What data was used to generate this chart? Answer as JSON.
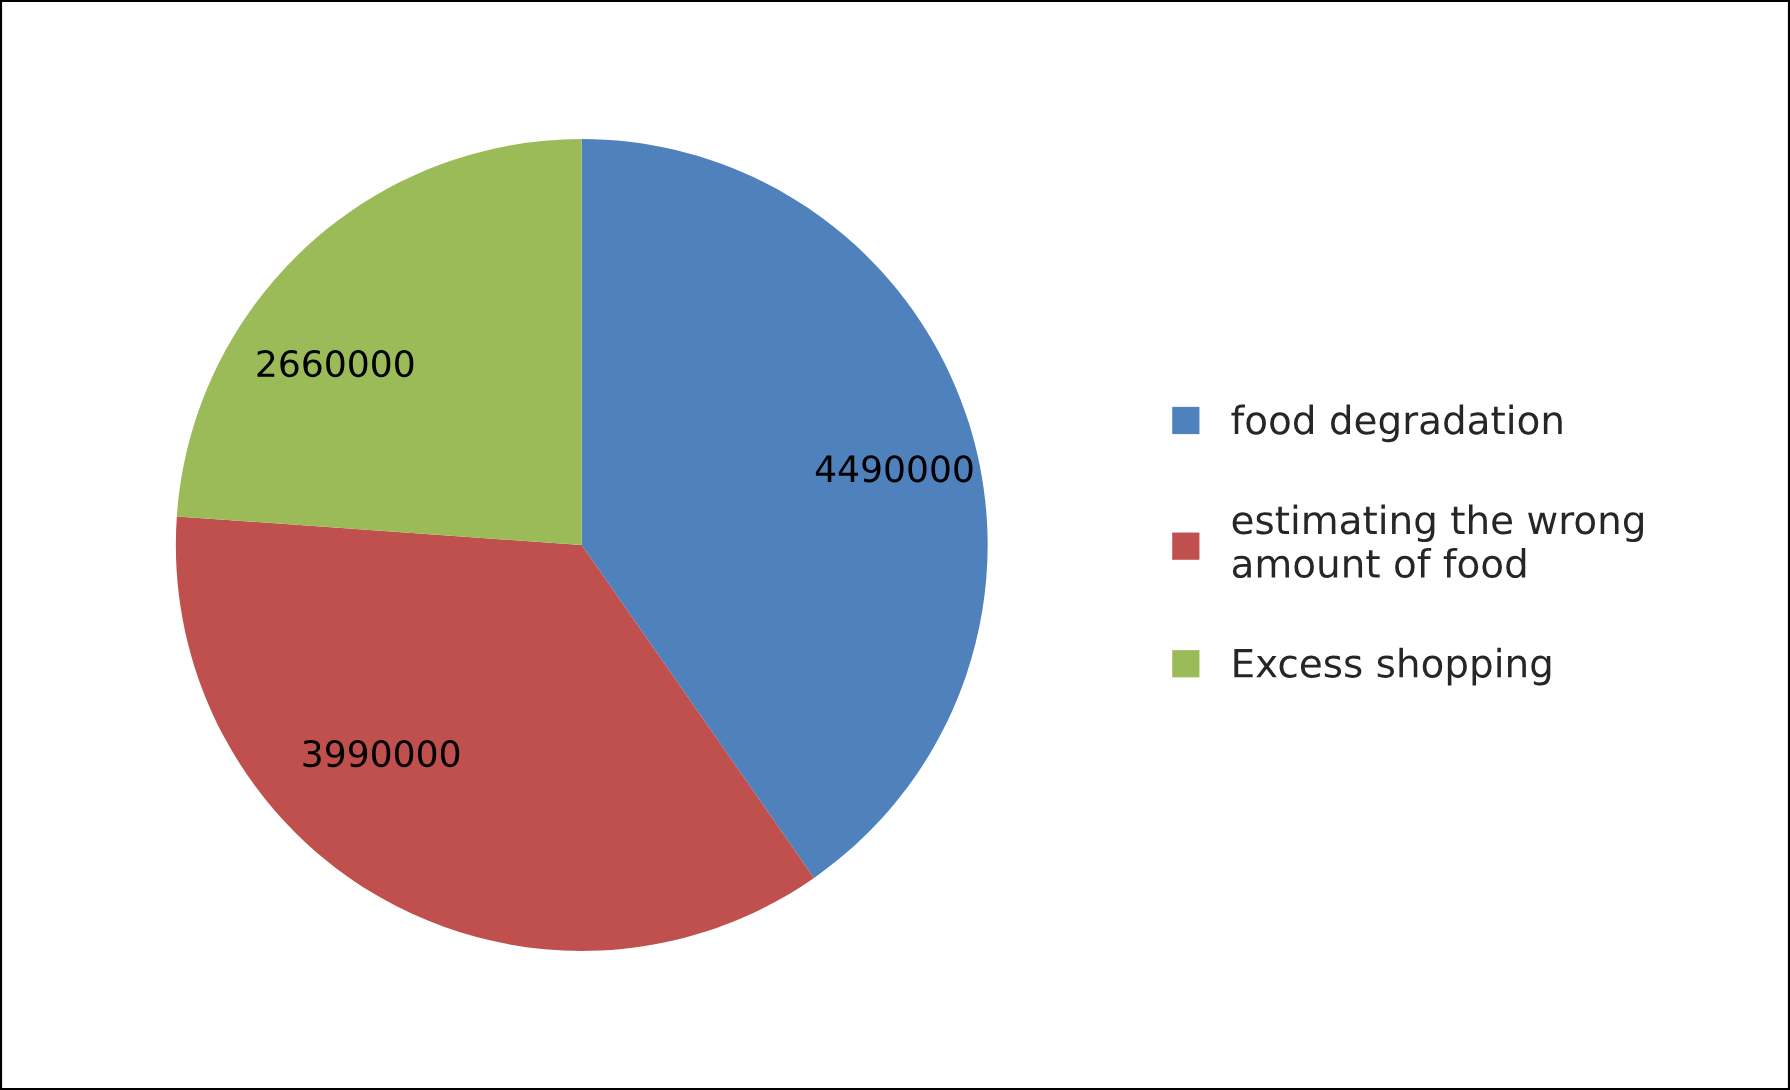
{
  "chart_data": {
    "type": "pie",
    "categories": [
      "food degradation",
      "estimating the wrong amount of food",
      "Excess shopping"
    ],
    "values": [
      4490000,
      3990000,
      2660000
    ],
    "colors": [
      "#4f81bd",
      "#c0504d",
      "#9bbb59"
    ],
    "data_labels": true,
    "legend": "right"
  }
}
